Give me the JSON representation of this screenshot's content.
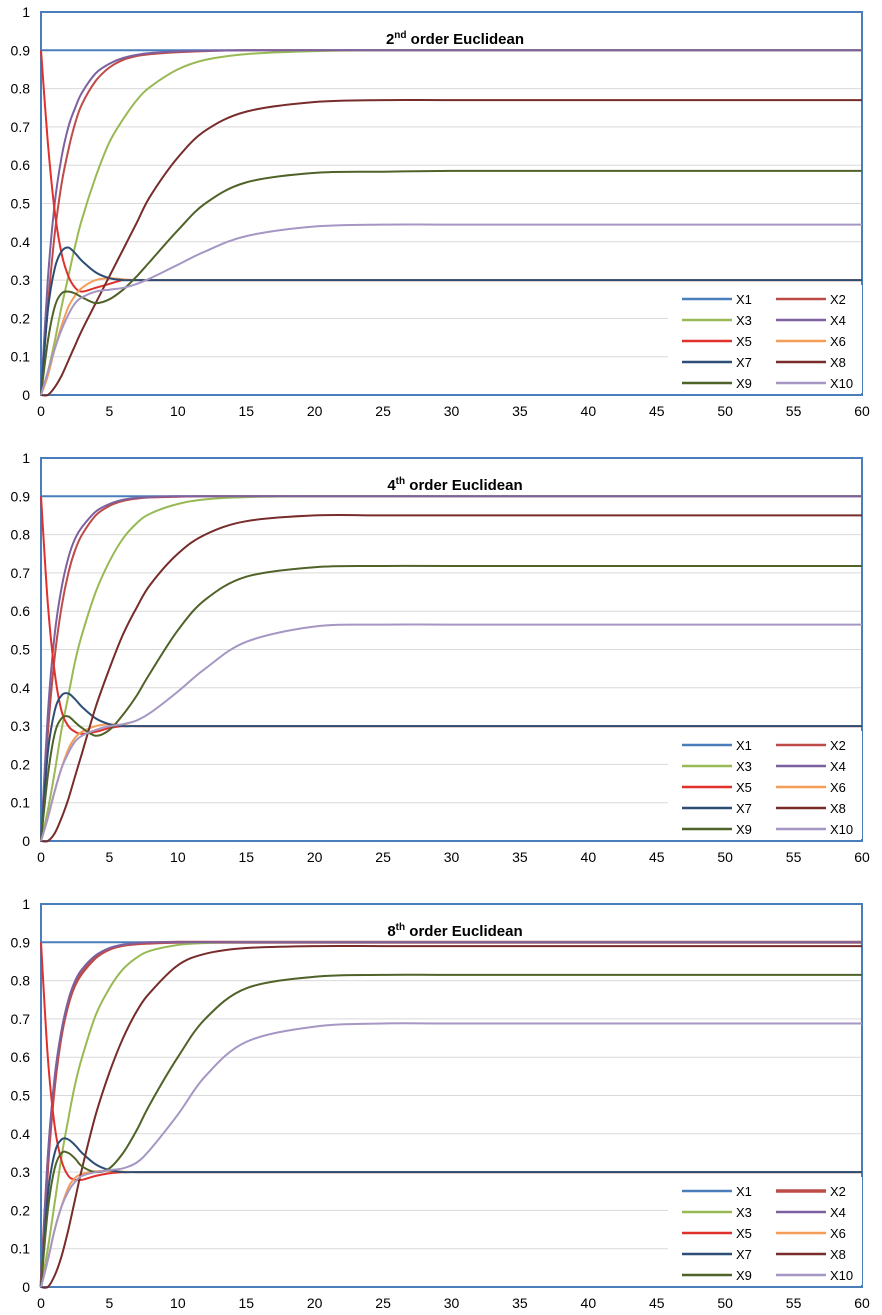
{
  "chart_data": [
    {
      "type": "line",
      "title": "2nd order Euclidean",
      "title_main": "2",
      "title_sup": "nd",
      "title_rest": " order Euclidean",
      "xlabel": "",
      "ylabel": "",
      "xlim": [
        0,
        60
      ],
      "ylim": [
        0,
        1
      ],
      "xticks": [
        0,
        5,
        10,
        15,
        20,
        25,
        30,
        35,
        40,
        45,
        50,
        55,
        60
      ],
      "yticks": [
        0,
        0.1,
        0.2,
        0.3,
        0.4,
        0.5,
        0.6,
        0.7,
        0.8,
        0.9,
        1
      ],
      "grid": true,
      "legend_position": "bottom-right",
      "x": [
        0,
        0.5,
        1,
        1.5,
        2,
        2.5,
        3,
        4,
        5,
        6,
        7,
        8,
        10,
        12,
        15,
        20,
        25,
        30,
        40,
        50,
        60
      ],
      "series": [
        {
          "name": "X1",
          "color": "#4A7EBB",
          "width": 2,
          "values": [
            0.9,
            0.9,
            0.9,
            0.9,
            0.9,
            0.9,
            0.9,
            0.9,
            0.9,
            0.9,
            0.9,
            0.9,
            0.9,
            0.9,
            0.9,
            0.9,
            0.9,
            0.9,
            0.9,
            0.9,
            0.9
          ]
        },
        {
          "name": "X2",
          "color": "#BE4B48",
          "width": 2,
          "values": [
            0,
            0.23,
            0.42,
            0.55,
            0.64,
            0.71,
            0.76,
            0.82,
            0.855,
            0.875,
            0.885,
            0.89,
            0.895,
            0.898,
            0.9,
            0.9,
            0.9,
            0.9,
            0.9,
            0.9,
            0.9
          ]
        },
        {
          "name": "X3",
          "color": "#98B954",
          "width": 2,
          "values": [
            0,
            0.06,
            0.14,
            0.23,
            0.31,
            0.39,
            0.46,
            0.57,
            0.66,
            0.72,
            0.77,
            0.805,
            0.85,
            0.875,
            0.89,
            0.898,
            0.9,
            0.9,
            0.9,
            0.9,
            0.9
          ]
        },
        {
          "name": "X4",
          "color": "#7D60A0",
          "width": 2,
          "values": [
            0,
            0.3,
            0.5,
            0.62,
            0.7,
            0.75,
            0.79,
            0.84,
            0.865,
            0.88,
            0.888,
            0.893,
            0.897,
            0.899,
            0.9,
            0.9,
            0.9,
            0.9,
            0.9,
            0.9,
            0.9
          ]
        },
        {
          "name": "X5",
          "color": "#E0302C",
          "width": 2,
          "values": [
            0.9,
            0.66,
            0.48,
            0.37,
            0.31,
            0.28,
            0.27,
            0.28,
            0.29,
            0.3,
            0.3,
            0.3,
            0.3,
            0.3,
            0.3,
            0.3,
            0.3,
            0.3,
            0.3,
            0.3,
            0.3
          ]
        },
        {
          "name": "X6",
          "color": "#F59D56",
          "width": 2,
          "values": [
            0,
            0.05,
            0.12,
            0.18,
            0.23,
            0.26,
            0.28,
            0.3,
            0.305,
            0.302,
            0.3,
            0.3,
            0.3,
            0.3,
            0.3,
            0.3,
            0.3,
            0.3,
            0.3,
            0.3,
            0.3
          ]
        },
        {
          "name": "X7",
          "color": "#2C4D75",
          "width": 2,
          "values": [
            0,
            0.22,
            0.33,
            0.375,
            0.385,
            0.37,
            0.35,
            0.32,
            0.305,
            0.3,
            0.3,
            0.3,
            0.3,
            0.3,
            0.3,
            0.3,
            0.3,
            0.3,
            0.3,
            0.3,
            0.3
          ]
        },
        {
          "name": "X8",
          "color": "#772C2A",
          "width": 2,
          "values": [
            0,
            0,
            0.02,
            0.05,
            0.09,
            0.13,
            0.17,
            0.24,
            0.31,
            0.38,
            0.45,
            0.52,
            0.62,
            0.69,
            0.74,
            0.765,
            0.77,
            0.77,
            0.77,
            0.77,
            0.77
          ]
        },
        {
          "name": "X9",
          "color": "#4F6228",
          "width": 2,
          "values": [
            0,
            0.14,
            0.23,
            0.265,
            0.27,
            0.265,
            0.255,
            0.24,
            0.25,
            0.275,
            0.31,
            0.35,
            0.43,
            0.5,
            0.555,
            0.58,
            0.583,
            0.585,
            0.585,
            0.585,
            0.585
          ]
        },
        {
          "name": "X10",
          "color": "#A596C3",
          "width": 2,
          "values": [
            0,
            0.06,
            0.12,
            0.17,
            0.21,
            0.24,
            0.255,
            0.27,
            0.275,
            0.28,
            0.29,
            0.305,
            0.34,
            0.375,
            0.415,
            0.44,
            0.445,
            0.445,
            0.445,
            0.445,
            0.445
          ]
        }
      ]
    },
    {
      "type": "line",
      "title": "4th order Euclidean",
      "title_main": "4",
      "title_sup": "th",
      "title_rest": " order Euclidean",
      "xlabel": "",
      "ylabel": "",
      "xlim": [
        0,
        60
      ],
      "ylim": [
        0,
        1
      ],
      "xticks": [
        0,
        5,
        10,
        15,
        20,
        25,
        30,
        35,
        40,
        45,
        50,
        55,
        60
      ],
      "yticks": [
        0,
        0.1,
        0.2,
        0.3,
        0.4,
        0.5,
        0.6,
        0.7,
        0.8,
        0.9,
        1
      ],
      "grid": true,
      "legend_position": "bottom-right",
      "x": [
        0,
        0.5,
        1,
        1.5,
        2,
        2.5,
        3,
        4,
        5,
        6,
        7,
        8,
        10,
        12,
        15,
        20,
        25,
        30,
        40,
        50,
        60
      ],
      "series": [
        {
          "name": "X1",
          "color": "#4A7EBB",
          "width": 2,
          "values": [
            0.9,
            0.9,
            0.9,
            0.9,
            0.9,
            0.9,
            0.9,
            0.9,
            0.9,
            0.9,
            0.9,
            0.9,
            0.9,
            0.9,
            0.9,
            0.9,
            0.9,
            0.9,
            0.9,
            0.9,
            0.9
          ]
        },
        {
          "name": "X2",
          "color": "#BE4B48",
          "width": 2,
          "values": [
            0,
            0.28,
            0.48,
            0.61,
            0.7,
            0.76,
            0.8,
            0.85,
            0.875,
            0.888,
            0.894,
            0.897,
            0.899,
            0.9,
            0.9,
            0.9,
            0.9,
            0.9,
            0.9,
            0.9,
            0.9
          ]
        },
        {
          "name": "X3",
          "color": "#98B954",
          "width": 2,
          "values": [
            0,
            0.08,
            0.18,
            0.29,
            0.38,
            0.47,
            0.54,
            0.65,
            0.73,
            0.79,
            0.83,
            0.855,
            0.88,
            0.892,
            0.898,
            0.9,
            0.9,
            0.9,
            0.9,
            0.9,
            0.9
          ]
        },
        {
          "name": "X4",
          "color": "#7D60A0",
          "width": 2,
          "values": [
            0,
            0.33,
            0.54,
            0.66,
            0.74,
            0.79,
            0.82,
            0.86,
            0.88,
            0.891,
            0.896,
            0.898,
            0.9,
            0.9,
            0.9,
            0.9,
            0.9,
            0.9,
            0.9,
            0.9,
            0.9
          ]
        },
        {
          "name": "X5",
          "color": "#E0302C",
          "width": 2,
          "values": [
            0.9,
            0.62,
            0.44,
            0.34,
            0.3,
            0.285,
            0.28,
            0.285,
            0.295,
            0.3,
            0.3,
            0.3,
            0.3,
            0.3,
            0.3,
            0.3,
            0.3,
            0.3,
            0.3,
            0.3,
            0.3
          ]
        },
        {
          "name": "X6",
          "color": "#F59D56",
          "width": 2,
          "values": [
            0,
            0.06,
            0.13,
            0.19,
            0.24,
            0.27,
            0.285,
            0.3,
            0.305,
            0.302,
            0.3,
            0.3,
            0.3,
            0.3,
            0.3,
            0.3,
            0.3,
            0.3,
            0.3,
            0.3,
            0.3
          ]
        },
        {
          "name": "X7",
          "color": "#2C4D75",
          "width": 2,
          "values": [
            0,
            0.23,
            0.34,
            0.38,
            0.385,
            0.37,
            0.35,
            0.32,
            0.305,
            0.3,
            0.3,
            0.3,
            0.3,
            0.3,
            0.3,
            0.3,
            0.3,
            0.3,
            0.3,
            0.3,
            0.3
          ]
        },
        {
          "name": "X8",
          "color": "#772C2A",
          "width": 2,
          "values": [
            0,
            0,
            0.02,
            0.06,
            0.11,
            0.17,
            0.23,
            0.35,
            0.45,
            0.54,
            0.61,
            0.67,
            0.75,
            0.8,
            0.835,
            0.85,
            0.85,
            0.85,
            0.85,
            0.85,
            0.85
          ]
        },
        {
          "name": "X9",
          "color": "#4F6228",
          "width": 2,
          "values": [
            0,
            0.17,
            0.28,
            0.32,
            0.325,
            0.31,
            0.295,
            0.275,
            0.29,
            0.33,
            0.38,
            0.44,
            0.55,
            0.63,
            0.69,
            0.715,
            0.718,
            0.718,
            0.718,
            0.718,
            0.718
          ]
        },
        {
          "name": "X10",
          "color": "#A596C3",
          "width": 2,
          "values": [
            0,
            0.06,
            0.13,
            0.19,
            0.23,
            0.26,
            0.275,
            0.29,
            0.3,
            0.305,
            0.315,
            0.335,
            0.39,
            0.45,
            0.52,
            0.56,
            0.565,
            0.565,
            0.565,
            0.565,
            0.565
          ]
        }
      ]
    },
    {
      "type": "line",
      "title": "8th order Euclidean",
      "title_main": "8",
      "title_sup": "th",
      "title_rest": " order Euclidean",
      "xlabel": "",
      "ylabel": "",
      "xlim": [
        0,
        60
      ],
      "ylim": [
        0,
        1
      ],
      "xticks": [
        0,
        5,
        10,
        15,
        20,
        25,
        30,
        35,
        40,
        45,
        50,
        55,
        60
      ],
      "yticks": [
        0,
        0.1,
        0.2,
        0.3,
        0.4,
        0.5,
        0.6,
        0.7,
        0.8,
        0.9,
        1
      ],
      "grid": true,
      "legend_position": "bottom-right",
      "x": [
        0,
        0.5,
        1,
        1.5,
        2,
        2.5,
        3,
        4,
        5,
        6,
        7,
        8,
        10,
        12,
        15,
        20,
        25,
        30,
        40,
        50,
        60
      ],
      "series": [
        {
          "name": "X1",
          "color": "#4A7EBB",
          "width": 2,
          "values": [
            0.9,
            0.9,
            0.9,
            0.9,
            0.9,
            0.9,
            0.9,
            0.9,
            0.9,
            0.9,
            0.9,
            0.9,
            0.9,
            0.9,
            0.9,
            0.9,
            0.9,
            0.9,
            0.9,
            0.9,
            0.9
          ]
        },
        {
          "name": "X2",
          "color": "#BE4B48",
          "width": 3,
          "values": [
            0,
            0.32,
            0.53,
            0.66,
            0.74,
            0.79,
            0.82,
            0.86,
            0.882,
            0.892,
            0.896,
            0.898,
            0.9,
            0.9,
            0.9,
            0.9,
            0.9,
            0.9,
            0.9,
            0.9,
            0.9
          ]
        },
        {
          "name": "X3",
          "color": "#98B954",
          "width": 2,
          "values": [
            0,
            0.1,
            0.22,
            0.34,
            0.44,
            0.53,
            0.6,
            0.71,
            0.78,
            0.83,
            0.86,
            0.878,
            0.893,
            0.898,
            0.9,
            0.9,
            0.9,
            0.9,
            0.9,
            0.9,
            0.9
          ]
        },
        {
          "name": "X4",
          "color": "#7D60A0",
          "width": 2,
          "values": [
            0,
            0.34,
            0.55,
            0.67,
            0.75,
            0.8,
            0.83,
            0.866,
            0.885,
            0.894,
            0.898,
            0.9,
            0.9,
            0.9,
            0.9,
            0.9,
            0.9,
            0.9,
            0.9,
            0.9,
            0.9
          ]
        },
        {
          "name": "X5",
          "color": "#E0302C",
          "width": 2,
          "values": [
            0.9,
            0.6,
            0.42,
            0.33,
            0.29,
            0.28,
            0.28,
            0.29,
            0.297,
            0.3,
            0.3,
            0.3,
            0.3,
            0.3,
            0.3,
            0.3,
            0.3,
            0.3,
            0.3,
            0.3,
            0.3
          ]
        },
        {
          "name": "X6",
          "color": "#F59D56",
          "width": 2,
          "values": [
            0,
            0.07,
            0.15,
            0.21,
            0.26,
            0.285,
            0.295,
            0.302,
            0.303,
            0.301,
            0.3,
            0.3,
            0.3,
            0.3,
            0.3,
            0.3,
            0.3,
            0.3,
            0.3,
            0.3,
            0.3
          ]
        },
        {
          "name": "X7",
          "color": "#2C4D75",
          "width": 2,
          "values": [
            0,
            0.24,
            0.35,
            0.385,
            0.385,
            0.37,
            0.35,
            0.32,
            0.305,
            0.3,
            0.3,
            0.3,
            0.3,
            0.3,
            0.3,
            0.3,
            0.3,
            0.3,
            0.3,
            0.3,
            0.3
          ]
        },
        {
          "name": "X8",
          "color": "#772C2A",
          "width": 2,
          "values": [
            0,
            0,
            0.03,
            0.08,
            0.15,
            0.23,
            0.31,
            0.45,
            0.56,
            0.65,
            0.72,
            0.77,
            0.84,
            0.87,
            0.885,
            0.89,
            0.89,
            0.89,
            0.89,
            0.89,
            0.89
          ]
        },
        {
          "name": "X9",
          "color": "#4F6228",
          "width": 2,
          "values": [
            0,
            0.2,
            0.31,
            0.35,
            0.35,
            0.335,
            0.315,
            0.3,
            0.31,
            0.35,
            0.41,
            0.48,
            0.6,
            0.7,
            0.78,
            0.81,
            0.815,
            0.815,
            0.815,
            0.815,
            0.815
          ]
        },
        {
          "name": "X10",
          "color": "#A596C3",
          "width": 2,
          "values": [
            0,
            0.07,
            0.15,
            0.21,
            0.25,
            0.275,
            0.29,
            0.3,
            0.305,
            0.31,
            0.325,
            0.36,
            0.45,
            0.55,
            0.64,
            0.68,
            0.688,
            0.688,
            0.688,
            0.688,
            0.688
          ]
        }
      ]
    }
  ]
}
